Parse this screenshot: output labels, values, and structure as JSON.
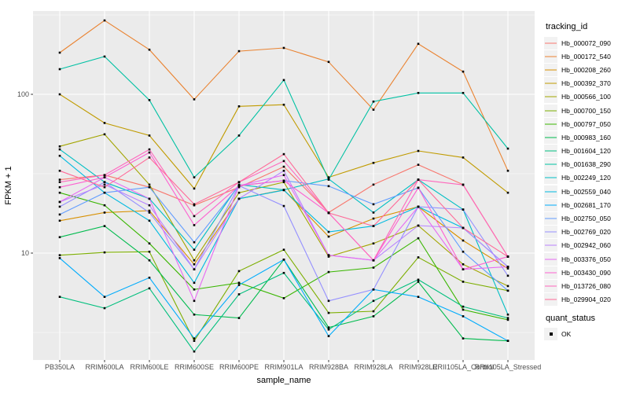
{
  "chart_data": {
    "type": "line",
    "title": "",
    "xlabel": "sample_name",
    "ylabel": "FPKM + 1",
    "y_scale": "log10",
    "y_major_ticks": [
      10,
      100
    ],
    "y_tick_labels": [
      "10",
      "100"
    ],
    "y_minor_breaks": [
      3.162,
      31.62,
      316.2
    ],
    "ylim": [
      2.1,
      340
    ],
    "grid": true,
    "panel_bg": "#EBEBEB",
    "grid_color": "#FFFFFF",
    "tick_color": "#333333",
    "tick_label_color": "#4D4D4D",
    "point_marker": "black-square",
    "legend_title_tracking": "tracking_id",
    "legend_title_quant": "quant_status",
    "quant_status_value": "OK",
    "categories": [
      "PB350LA",
      "RRIM600LA",
      "RRIM600LE",
      "RRIM600SE",
      "RRIM600PE",
      "RRIM901LA",
      "RRIM928BA",
      "RRIM928LA",
      "RRIM928LE",
      "RRII105LA_Control",
      "RRII105LA_Stressed"
    ],
    "series": [
      {
        "name": "Hb_000072_090",
        "color": "#F8766D",
        "values": [
          29,
          31,
          26,
          20,
          26,
          35,
          18,
          27,
          36,
          27,
          9.5
        ]
      },
      {
        "name": "Hb_000172_540",
        "color": "#EA8331",
        "values": [
          183,
          292,
          191,
          93,
          187,
          196,
          160,
          80,
          208,
          139,
          33
        ]
      },
      {
        "name": "Hb_000208_260",
        "color": "#D89000",
        "values": [
          16,
          18,
          18.5,
          8.5,
          22,
          25,
          12.7,
          16.5,
          19.6,
          12,
          8
        ]
      },
      {
        "name": "Hb_000392_370",
        "color": "#C09B00",
        "values": [
          100,
          66,
          55,
          25.5,
          84,
          86,
          30,
          37,
          44,
          40,
          24
        ]
      },
      {
        "name": "Hb_000566_100",
        "color": "#A3A500",
        "values": [
          47,
          56,
          27,
          9,
          24,
          28,
          9.5,
          11.5,
          14.9,
          8.5,
          6.2
        ]
      },
      {
        "name": "Hb_000700_150",
        "color": "#7CAE00",
        "values": [
          9.7,
          10.1,
          10.2,
          2.8,
          7.7,
          10.5,
          4.2,
          4.3,
          9.4,
          6.6,
          5.8
        ]
      },
      {
        "name": "Hb_000797_050",
        "color": "#39B600",
        "values": [
          24,
          20,
          11.5,
          5.9,
          6.5,
          5.2,
          7.6,
          8.1,
          12.4,
          4.4,
          3.8
        ]
      },
      {
        "name": "Hb_000983_160",
        "color": "#00BB4E",
        "values": [
          12.6,
          14.8,
          9,
          4.1,
          3.9,
          9.1,
          3.4,
          4,
          6.6,
          2.9,
          2.8
        ]
      },
      {
        "name": "Hb_001604_120",
        "color": "#00BF7D",
        "values": [
          5.3,
          4.5,
          6,
          2.4,
          5.5,
          7.5,
          3.3,
          5,
          6.8,
          4.6,
          3.9
        ]
      },
      {
        "name": "Hb_001638_290",
        "color": "#00C1A3",
        "values": [
          144,
          173,
          92,
          30,
          55,
          123,
          29,
          90,
          102,
          102,
          45.5
        ]
      },
      {
        "name": "Hb_002249_120",
        "color": "#00BFC4",
        "values": [
          45,
          28,
          22,
          10.5,
          27,
          25,
          29.3,
          18,
          29,
          18.8,
          4.1
        ]
      },
      {
        "name": "Hb_002559_040",
        "color": "#00BAE0",
        "values": [
          41,
          24,
          16,
          6.5,
          22,
          24.9,
          13.6,
          14.8,
          19.6,
          14.4,
          8.2
        ]
      },
      {
        "name": "Hb_002681_170",
        "color": "#00ACFC",
        "values": [
          9.3,
          5.3,
          7,
          2.9,
          6.3,
          9.1,
          3,
          5.9,
          5.3,
          4,
          2.8
        ]
      },
      {
        "name": "Hb_002750_050",
        "color": "#619CFF",
        "values": [
          17.5,
          24,
          26,
          11.7,
          26.6,
          28.6,
          26.4,
          20.3,
          25.8,
          10.2,
          5.8
        ]
      },
      {
        "name": "Hb_002769_020",
        "color": "#9590FF",
        "values": [
          19.6,
          28,
          18,
          7.9,
          26.6,
          19.8,
          5,
          5.9,
          19.6,
          18.8,
          7.2
        ]
      },
      {
        "name": "Hb_002942_060",
        "color": "#B983FF",
        "values": [
          21,
          27,
          20,
          7.9,
          22,
          33,
          9.7,
          9,
          14.9,
          14.4,
          8.2
        ]
      },
      {
        "name": "Hb_003376_050",
        "color": "#E76BF3",
        "values": [
          21,
          30,
          22,
          5,
          26.6,
          31,
          9.7,
          9,
          19.6,
          7.9,
          8.2
        ]
      },
      {
        "name": "Hb_003430_090",
        "color": "#FD61D1",
        "values": [
          26,
          30,
          43,
          15,
          26.6,
          28.6,
          17.9,
          9,
          25.8,
          7.9,
          9.5
        ]
      },
      {
        "name": "Hb_013726_080",
        "color": "#FF67BC",
        "values": [
          28,
          31,
          45,
          17.1,
          28,
          38,
          17.9,
          9,
          29,
          26.9,
          9.5
        ]
      },
      {
        "name": "Hb_029904_020",
        "color": "#FF6A98",
        "values": [
          33,
          26,
          40,
          20.3,
          28,
          42,
          17.9,
          14.8,
          29,
          14.4,
          9.5
        ]
      }
    ]
  }
}
